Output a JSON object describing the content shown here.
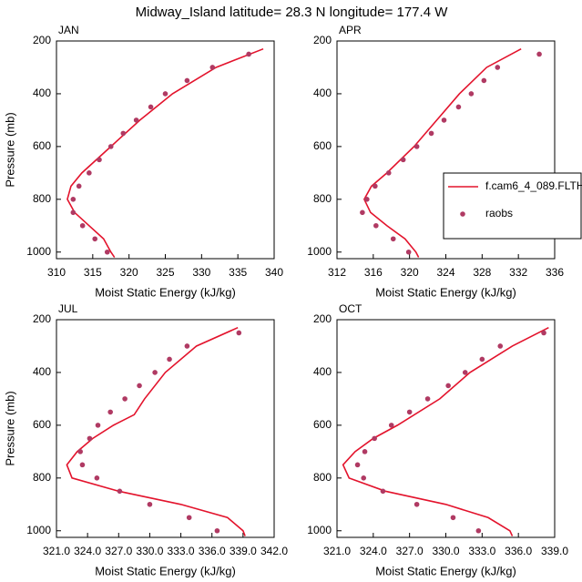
{
  "title": "Midway_Island  latitude= 28.3 N longitude= 177.4 W",
  "legend": {
    "entries": [
      {
        "name": "f.cam6_4_089.FLTH",
        "color": "#e3132c",
        "kind": "line"
      },
      {
        "name": "raobs",
        "color": "#b03a63",
        "kind": "points"
      }
    ]
  },
  "chart_data": [
    {
      "type": "profile",
      "label": "JAN",
      "xlabel": "Moist Static Energy (kJ/kg)",
      "ylabel": "Pressure (mb)",
      "xlim": [
        310,
        340
      ],
      "xticks": [
        310,
        315,
        320,
        325,
        330,
        335,
        340
      ],
      "ylim": [
        200,
        1025
      ],
      "yticks": [
        200,
        400,
        600,
        800,
        1000
      ],
      "yreverse": true,
      "series": [
        {
          "kind": "line",
          "color": "#e3132c",
          "y": [
            230,
            300,
            400,
            500,
            600,
            700,
            750,
            800,
            850,
            900,
            950,
            1000,
            1020
          ],
          "values": [
            338.5,
            332,
            326,
            321.5,
            317.5,
            313.5,
            312,
            311.5,
            312.5,
            314.5,
            316.5,
            317.5,
            318
          ]
        },
        {
          "kind": "points",
          "color": "#b03a63",
          "y": [
            250,
            300,
            350,
            400,
            450,
            500,
            550,
            600,
            650,
            700,
            750,
            800,
            850,
            900,
            950,
            1000
          ],
          "values": [
            336.5,
            331.5,
            328,
            325,
            323,
            321,
            319.2,
            317.5,
            315.9,
            314.5,
            313.1,
            312.3,
            312.3,
            313.6,
            315.3,
            317
          ]
        }
      ]
    },
    {
      "type": "profile",
      "label": "APR",
      "xlabel": "Moist Static Energy (kJ/kg)",
      "xlim": [
        312,
        336
      ],
      "xticks": [
        312,
        316,
        320,
        324,
        328,
        332,
        336
      ],
      "ylim": [
        200,
        1025
      ],
      "yticks": [
        200,
        400,
        600,
        800,
        1000
      ],
      "yreverse": true,
      "legend": true,
      "series": [
        {
          "kind": "line",
          "color": "#e3132c",
          "y": [
            230,
            300,
            400,
            500,
            600,
            700,
            750,
            800,
            850,
            900,
            950,
            1000,
            1020
          ],
          "values": [
            332.3,
            328.5,
            325.5,
            323,
            320.5,
            317.5,
            315.8,
            315,
            315.7,
            317.5,
            319.5,
            320.7,
            321
          ]
        },
        {
          "kind": "points",
          "color": "#b03a63",
          "y": [
            250,
            300,
            350,
            400,
            450,
            500,
            550,
            600,
            650,
            700,
            750,
            800,
            850,
            900,
            950,
            1000
          ],
          "values": [
            334.3,
            329.7,
            328.2,
            326.8,
            325.4,
            323.8,
            322.4,
            320.8,
            319.3,
            317.7,
            316.2,
            315.3,
            314.8,
            316.3,
            318.2,
            319.9
          ]
        }
      ]
    },
    {
      "type": "profile",
      "label": "JUL",
      "xlabel": "Moist Static Energy (kJ/kg)",
      "ylabel": "Pressure (mb)",
      "xlim": [
        321,
        342
      ],
      "xticks": [
        {
          "value": 321,
          "label": "321.0"
        },
        {
          "value": 324,
          "label": "324.0"
        },
        {
          "value": 327,
          "label": "327.0"
        },
        {
          "value": 330,
          "label": "330.0"
        },
        {
          "value": 333,
          "label": "333.0"
        },
        {
          "value": 336,
          "label": "336.0"
        },
        {
          "value": 339,
          "label": "339.0"
        },
        {
          "value": 342,
          "label": "342.0"
        }
      ],
      "ylim": [
        200,
        1025
      ],
      "yticks": [
        200,
        400,
        600,
        800,
        1000
      ],
      "yreverse": true,
      "series": [
        {
          "kind": "line",
          "color": "#e3132c",
          "y": [
            230,
            300,
            400,
            500,
            560,
            580,
            600,
            650,
            700,
            750,
            800,
            850,
            900,
            950,
            1000,
            1020
          ],
          "values": [
            338.5,
            334.5,
            331.5,
            329.5,
            328.5,
            327.5,
            326.5,
            324.5,
            323,
            322,
            322.5,
            327,
            333,
            337.5,
            339,
            339.2
          ]
        },
        {
          "kind": "points",
          "color": "#b03a63",
          "y": [
            250,
            300,
            350,
            400,
            450,
            500,
            550,
            600,
            650,
            700,
            750,
            800,
            850,
            900,
            950,
            1000
          ],
          "values": [
            338.6,
            333.6,
            331.9,
            330.5,
            329,
            327.6,
            326.2,
            325,
            324.2,
            323.3,
            323.5,
            324.9,
            327.1,
            330,
            333.8,
            336.5
          ]
        }
      ]
    },
    {
      "type": "profile",
      "label": "OCT",
      "xlabel": "Moist Static Energy (kJ/kg)",
      "xlim": [
        321,
        339
      ],
      "xticks": [
        {
          "value": 321,
          "label": "321.0"
        },
        {
          "value": 324,
          "label": "324.0"
        },
        {
          "value": 327,
          "label": "327.0"
        },
        {
          "value": 330,
          "label": "330.0"
        },
        {
          "value": 333,
          "label": "333.0"
        },
        {
          "value": 336,
          "label": "336.0"
        },
        {
          "value": 339,
          "label": "339.0"
        }
      ],
      "ylim": [
        200,
        1025
      ],
      "yticks": [
        200,
        400,
        600,
        800,
        1000
      ],
      "yreverse": true,
      "series": [
        {
          "kind": "line",
          "color": "#e3132c",
          "y": [
            230,
            300,
            400,
            500,
            600,
            650,
            700,
            750,
            800,
            850,
            900,
            950,
            1000,
            1020
          ],
          "values": [
            338.5,
            335.5,
            332,
            329.5,
            326,
            324,
            322.5,
            321.5,
            322,
            325,
            330,
            333.5,
            335.3,
            335.5
          ]
        },
        {
          "kind": "points",
          "color": "#b03a63",
          "y": [
            250,
            300,
            350,
            400,
            450,
            500,
            550,
            600,
            650,
            700,
            750,
            800,
            850,
            900,
            950,
            1000
          ],
          "values": [
            338.1,
            334.5,
            333,
            331.6,
            330.2,
            328.5,
            327,
            325.5,
            324.1,
            323.3,
            322.7,
            323.2,
            324.8,
            327.6,
            330.6,
            332.7
          ]
        }
      ]
    }
  ]
}
